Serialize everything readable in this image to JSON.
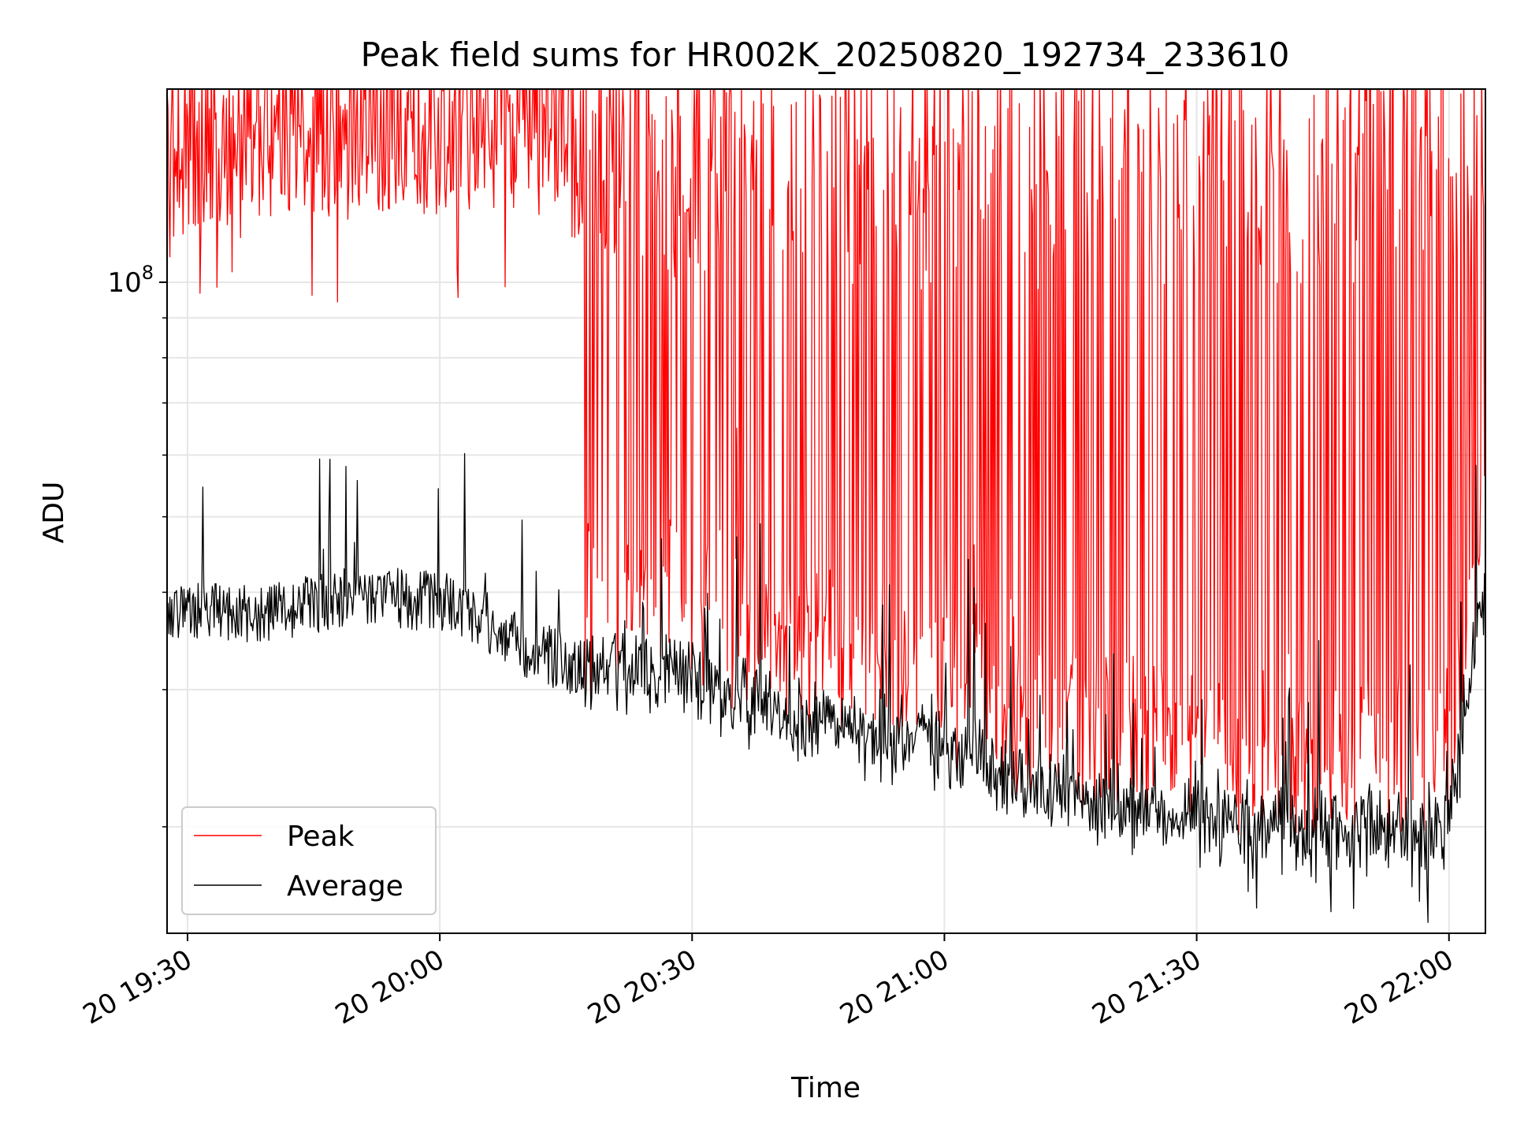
{
  "chart_data": {
    "type": "line",
    "title": "Peak field sums for HR002K_20250820_192734_233610",
    "xlabel": "Time",
    "ylabel": "ADU",
    "yscale": "log",
    "grid": true,
    "legend_position": "lower-left",
    "x_range": [
      "2025-08-20 19:27:34",
      "2025-08-20 22:04:20"
    ],
    "ylim": [
      14600000,
      177000000
    ],
    "x_ticks": [
      {
        "time": "19:30",
        "label": "20 19:30"
      },
      {
        "time": "20:00",
        "label": "20 20:00"
      },
      {
        "time": "20:30",
        "label": "20 20:30"
      },
      {
        "time": "21:00",
        "label": "20 21:00"
      },
      {
        "time": "21:30",
        "label": "20 21:30"
      },
      {
        "time": "22:00",
        "label": "20 22:00"
      }
    ],
    "y_major_tick": {
      "value": 100000000,
      "label_base": "10",
      "label_exp": "8"
    },
    "y_minor_ticks": [
      20000000,
      30000000,
      40000000,
      50000000,
      60000000,
      70000000,
      80000000,
      90000000
    ],
    "series": [
      {
        "name": "Peak",
        "color": "#ff0000",
        "description_points": [
          [
            "19:27:34",
            150000000
          ],
          [
            "19:40:00",
            160000000
          ],
          [
            "19:50:00",
            158000000
          ],
          [
            "20:05:00",
            163000000
          ],
          [
            "20:15:00",
            165000000
          ],
          [
            "20:16:00",
            140000000
          ],
          [
            "20:30:00",
            155000000
          ],
          [
            "21:00:00",
            160000000
          ],
          [
            "21:30:00",
            165000000
          ],
          [
            "22:00:00",
            165000000
          ],
          [
            "22:04:20",
            93000000
          ]
        ]
      },
      {
        "name": "Average",
        "color": "#000000",
        "description_points": [
          [
            "19:27:34",
            38000000
          ],
          [
            "19:40:00",
            37500000
          ],
          [
            "19:50:00",
            39500000
          ],
          [
            "20:00:00",
            39000000
          ],
          [
            "20:05:00",
            37000000
          ],
          [
            "20:10:00",
            34000000
          ],
          [
            "20:17:00",
            32000000
          ],
          [
            "20:30:00",
            31000000
          ],
          [
            "20:40:00",
            28000000
          ],
          [
            "20:50:00",
            26500000
          ],
          [
            "21:00:00",
            25500000
          ],
          [
            "21:10:00",
            22500000
          ],
          [
            "21:20:00",
            21000000
          ],
          [
            "21:30:00",
            20500000
          ],
          [
            "21:40:00",
            20300000
          ],
          [
            "21:50:00",
            20000000
          ],
          [
            "22:00:00",
            20200000
          ],
          [
            "22:04:20",
            42000000
          ]
        ]
      }
    ]
  }
}
